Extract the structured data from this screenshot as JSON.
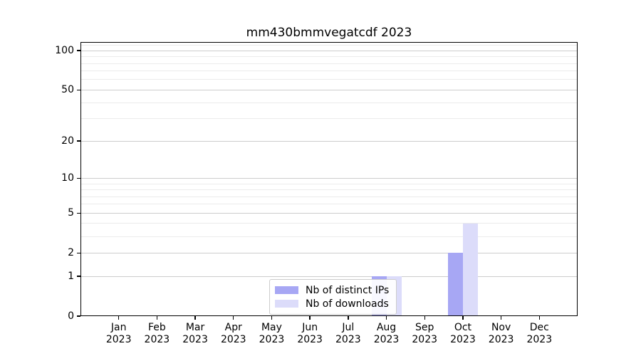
{
  "chart_data": {
    "type": "bar",
    "title": "mm430bmmvegatcdf 2023",
    "categories": [
      {
        "month": "Jan",
        "year": "2023"
      },
      {
        "month": "Feb",
        "year": "2023"
      },
      {
        "month": "Mar",
        "year": "2023"
      },
      {
        "month": "Apr",
        "year": "2023"
      },
      {
        "month": "May",
        "year": "2023"
      },
      {
        "month": "Jun",
        "year": "2023"
      },
      {
        "month": "Jul",
        "year": "2023"
      },
      {
        "month": "Aug",
        "year": "2023"
      },
      {
        "month": "Sep",
        "year": "2023"
      },
      {
        "month": "Oct",
        "year": "2023"
      },
      {
        "month": "Nov",
        "year": "2023"
      },
      {
        "month": "Dec",
        "year": "2023"
      }
    ],
    "series": [
      {
        "name": "Nb of distinct IPs",
        "color": "#a7a7f4",
        "values": [
          0,
          0,
          0,
          0,
          0,
          0,
          0,
          1,
          0,
          2,
          0,
          0
        ]
      },
      {
        "name": "Nb of downloads",
        "color": "#dcdcfa",
        "values": [
          0,
          0,
          0,
          0,
          0,
          0,
          0,
          1,
          0,
          4,
          0,
          0
        ]
      }
    ],
    "y_scale": "log1p",
    "y_ticks": [
      0,
      1,
      2,
      5,
      10,
      20,
      50,
      100
    ],
    "y_minor_gridlines": [
      3,
      4,
      6,
      7,
      8,
      9,
      30,
      40,
      60,
      70,
      80,
      90,
      110
    ],
    "ylim": [
      0,
      116
    ],
    "grid": true,
    "legend_position": "lower center"
  },
  "colors": {
    "grid_major": "#cccccc",
    "grid_minor": "#ebebeb",
    "axis": "#000000",
    "background": "#ffffff"
  }
}
